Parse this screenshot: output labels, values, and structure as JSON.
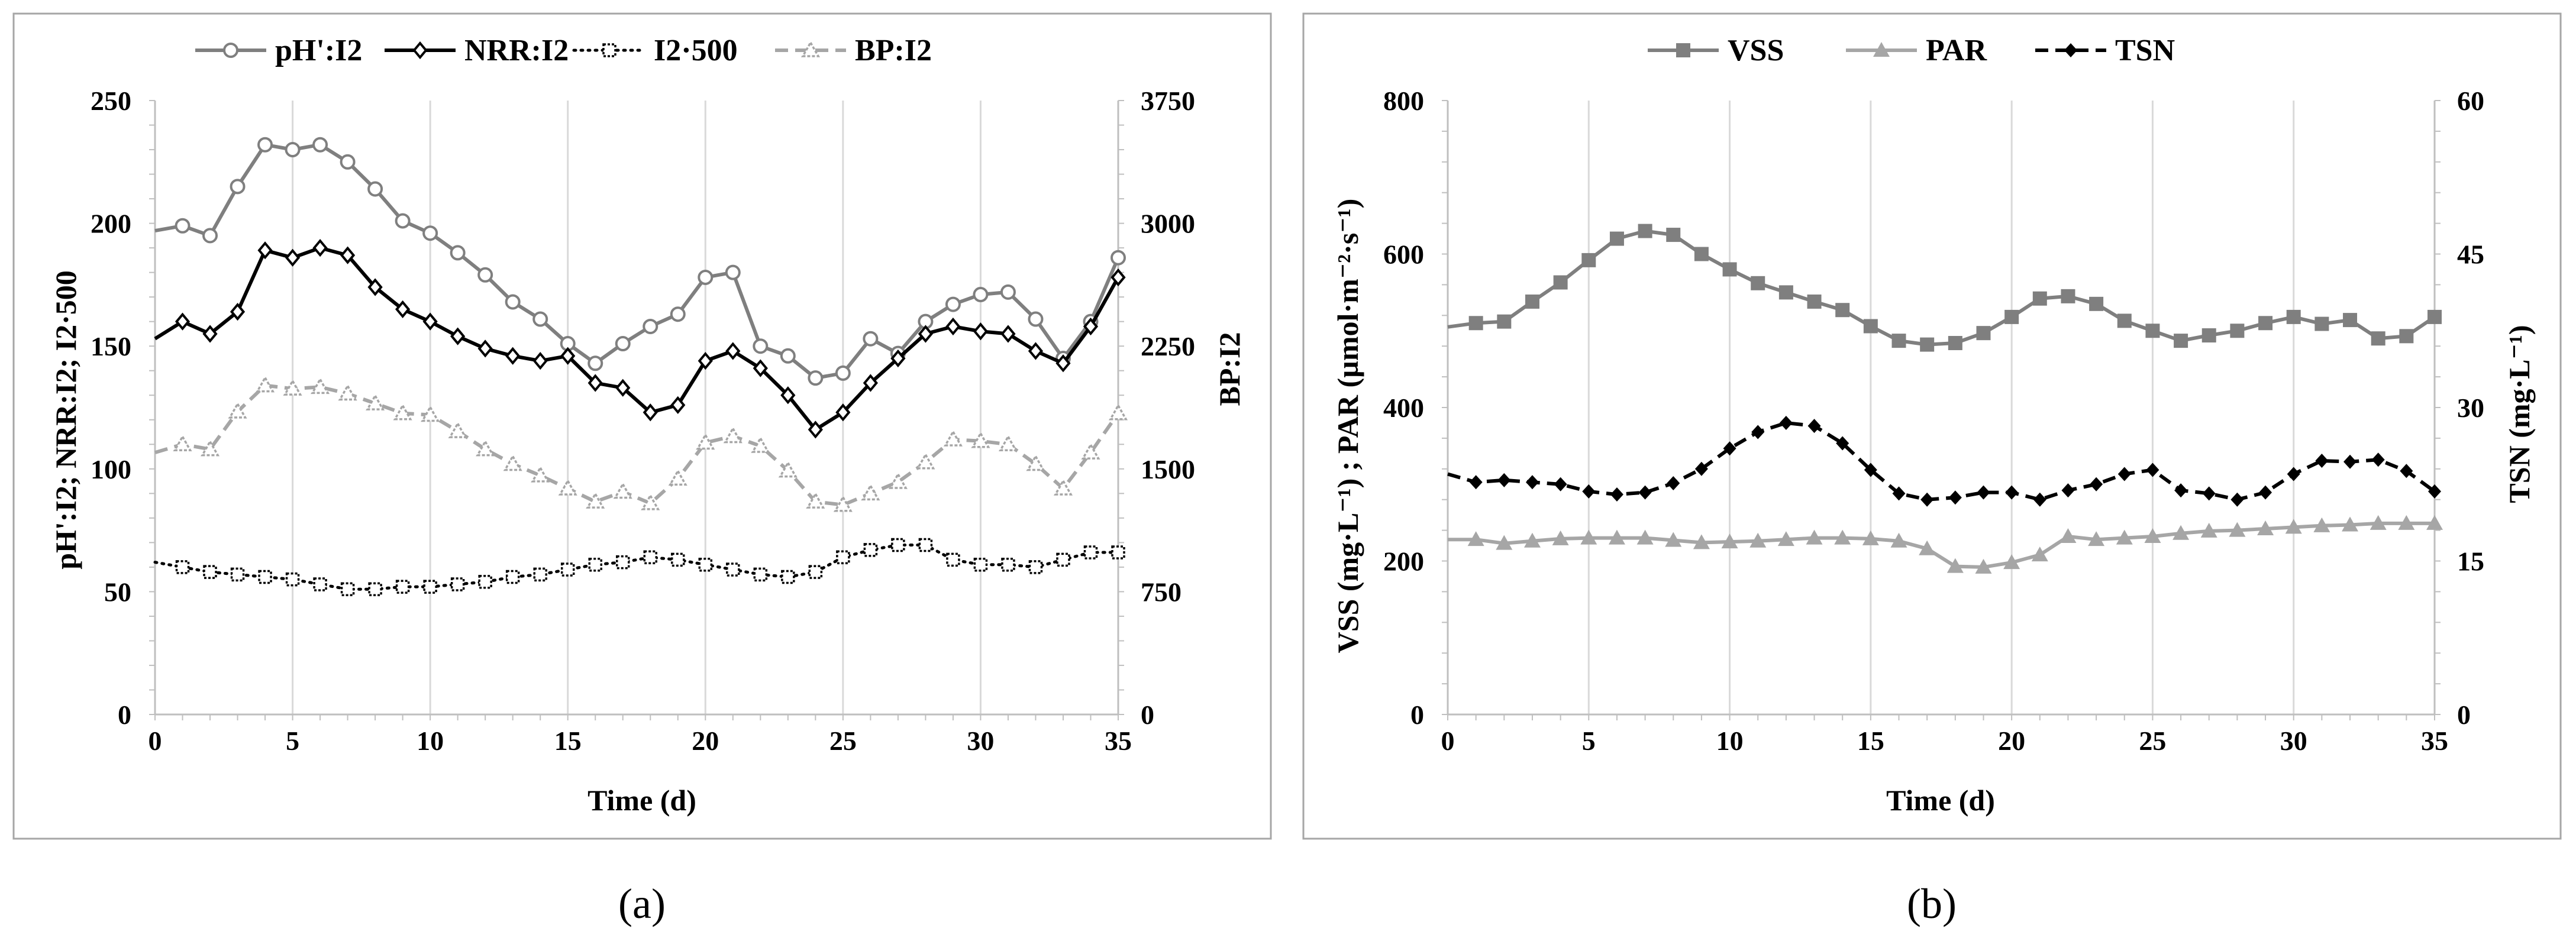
{
  "chart_data": [
    {
      "type": "line",
      "caption": "(a)",
      "xlabel": "Time (d)",
      "ylabel_left": "pH':I2; NRR:I2; I2·500",
      "ylabel_right": "BP:I2",
      "xlim": [
        0,
        35
      ],
      "xticks": [
        0,
        5,
        10,
        15,
        20,
        25,
        30,
        35
      ],
      "ylim_left": [
        0,
        250
      ],
      "yticks_left": [
        0,
        50,
        100,
        150,
        200,
        250
      ],
      "ylim_right": [
        0,
        3750
      ],
      "yticks_right": [
        0,
        750,
        1500,
        2250,
        3000,
        3750
      ],
      "grid": "vertical",
      "legend_position": "top",
      "x": [
        0,
        1,
        2,
        3,
        4,
        5,
        6,
        7,
        8,
        9,
        10,
        11,
        12,
        13,
        14,
        15,
        16,
        17,
        18,
        19,
        20,
        21,
        22,
        23,
        24,
        25,
        26,
        27,
        28,
        29,
        30,
        31,
        32,
        33,
        34,
        35
      ],
      "series": [
        {
          "name": "pH':I2",
          "axis": "left",
          "style": "line-circle",
          "color": "#7f7f7f",
          "values": [
            197,
            199,
            195,
            215,
            232,
            230,
            232,
            225,
            214,
            201,
            196,
            188,
            179,
            168,
            161,
            151,
            143,
            151,
            158,
            163,
            178,
            180,
            150,
            146,
            137,
            139,
            153,
            147,
            160,
            167,
            171,
            172,
            161,
            145,
            160,
            186
          ]
        },
        {
          "name": "NRR:I2",
          "axis": "left",
          "style": "line-diamond",
          "color": "#000000",
          "values": [
            153,
            160,
            155,
            164,
            189,
            186,
            190,
            187,
            174,
            165,
            160,
            154,
            149,
            146,
            144,
            146,
            135,
            133,
            123,
            126,
            144,
            148,
            141,
            130,
            116,
            123,
            135,
            145,
            155,
            158,
            156,
            155,
            148,
            143,
            158,
            178
          ]
        },
        {
          "name": "I2·500",
          "axis": "left",
          "style": "dotted-square",
          "color": "#000000",
          "values": [
            62,
            60,
            58,
            57,
            56,
            55,
            53,
            51,
            51,
            52,
            52,
            53,
            54,
            56,
            57,
            59,
            61,
            62,
            64,
            63,
            61,
            59,
            57,
            56,
            58,
            64,
            67,
            69,
            69,
            63,
            61,
            61,
            60,
            63,
            66,
            66
          ]
        },
        {
          "name": "BP:I2",
          "axis": "right",
          "style": "dashed-triangle",
          "color": "#a6a6a6",
          "values": [
            1600,
            1650,
            1620,
            1850,
            2010,
            1990,
            2000,
            1960,
            1900,
            1840,
            1830,
            1730,
            1620,
            1530,
            1460,
            1380,
            1300,
            1360,
            1290,
            1440,
            1660,
            1700,
            1640,
            1490,
            1300,
            1280,
            1350,
            1420,
            1540,
            1680,
            1670,
            1650,
            1530,
            1380,
            1600,
            1840
          ]
        }
      ]
    },
    {
      "type": "line",
      "caption": "(b)",
      "xlabel": "Time (d)",
      "ylabel_left": "VSS (mg·L⁻¹) ; PAR (µmol·m⁻²·s⁻¹)",
      "ylabel_right": "TSN (mg·L⁻¹)",
      "xlim": [
        0,
        35
      ],
      "xticks": [
        0,
        5,
        10,
        15,
        20,
        25,
        30,
        35
      ],
      "ylim_left": [
        0,
        800
      ],
      "yticks_left": [
        0,
        200,
        400,
        600,
        800
      ],
      "ylim_right": [
        0,
        60
      ],
      "yticks_right": [
        0,
        15,
        30,
        45,
        60
      ],
      "grid": "vertical",
      "legend_position": "top",
      "x": [
        0,
        1,
        2,
        3,
        4,
        5,
        6,
        7,
        8,
        9,
        10,
        11,
        12,
        13,
        14,
        15,
        16,
        17,
        18,
        19,
        20,
        21,
        22,
        23,
        24,
        25,
        26,
        27,
        28,
        29,
        30,
        31,
        32,
        33,
        34,
        35
      ],
      "series": [
        {
          "name": "VSS",
          "axis": "left",
          "style": "line-square",
          "color": "#7f7f7f",
          "values": [
            505,
            510,
            512,
            538,
            563,
            592,
            620,
            630,
            625,
            600,
            580,
            562,
            550,
            538,
            527,
            506,
            487,
            482,
            484,
            497,
            518,
            542,
            545,
            535,
            513,
            500,
            487,
            494,
            500,
            510,
            518,
            509,
            514,
            490,
            493,
            518
          ]
        },
        {
          "name": "PAR",
          "axis": "left",
          "style": "line-triangle",
          "color": "#a6a6a6",
          "values": [
            228,
            228,
            223,
            226,
            229,
            230,
            230,
            230,
            227,
            224,
            225,
            226,
            228,
            230,
            230,
            229,
            226,
            216,
            193,
            192,
            198,
            208,
            232,
            228,
            230,
            232,
            236,
            239,
            240,
            242,
            244,
            246,
            247,
            249,
            249,
            249
          ]
        },
        {
          "name": "TSN",
          "axis": "right",
          "style": "dashed-diamond",
          "color": "#000000",
          "values": [
            23.5,
            22.7,
            22.9,
            22.7,
            22.5,
            21.8,
            21.5,
            21.7,
            22.6,
            24.0,
            26.0,
            27.6,
            28.5,
            28.2,
            26.5,
            23.9,
            21.6,
            21.0,
            21.2,
            21.7,
            21.7,
            21.0,
            21.9,
            22.5,
            23.5,
            23.9,
            21.9,
            21.6,
            21.0,
            21.7,
            23.5,
            24.8,
            24.7,
            24.9,
            23.8,
            21.8
          ]
        }
      ]
    }
  ]
}
